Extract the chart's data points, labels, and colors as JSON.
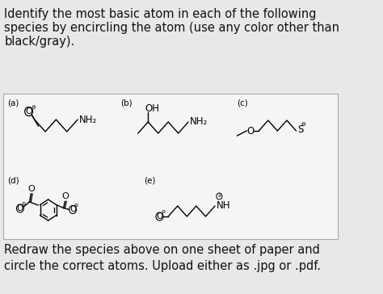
{
  "bg_color": "#e8e8e8",
  "white_box_color": "#f5f5f5",
  "text_color": "#111111",
  "title_lines": [
    "Identify the most basic atom in each of the following",
    "species by encircling the atom (use any color other than",
    "black/gray)."
  ],
  "footer_lines": [
    "Redraw the species above on one sheet of paper and",
    "circle the correct atoms. Upload either as .jpg or .pdf."
  ],
  "title_fontsize": 10.5,
  "footer_fontsize": 10.5,
  "label_fontsize": 7.5,
  "chem_fontsize": 8.5
}
